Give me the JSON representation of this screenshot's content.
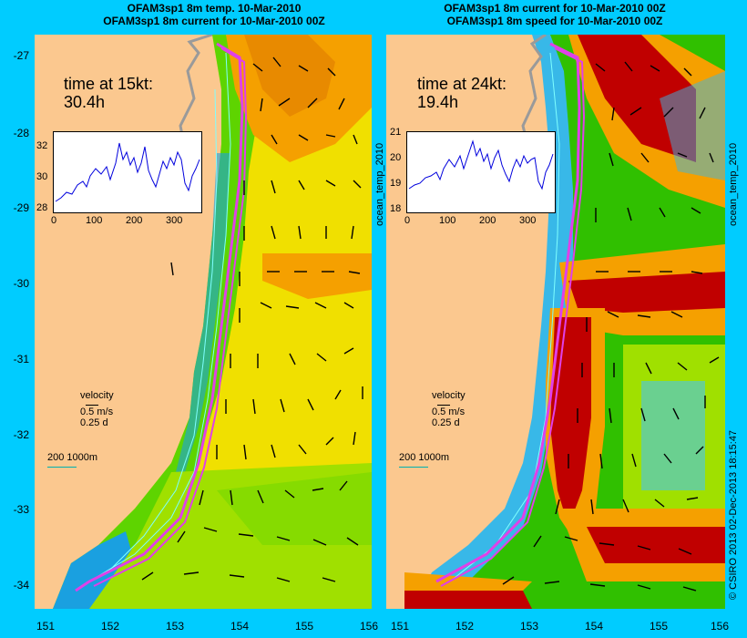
{
  "left_panel": {
    "title_line1": "OFAM3sp1 8m temp. 10-Mar-2010",
    "title_line2": "OFAM3sp1 8m current for 10-Mar-2010 00Z",
    "time_label": "time at 15kt:",
    "time_value": "30.4h",
    "inset_yticks": [
      "32",
      "30",
      "28"
    ],
    "inset_xticks": [
      "0",
      "100",
      "200",
      "300"
    ]
  },
  "right_panel": {
    "title_line1": "OFAM3sp1 8m current for 10-Mar-2010 00Z",
    "title_line2": "OFAM3sp1 8m speed for 10-Mar-2010 00Z",
    "time_label": "time at 24kt:",
    "time_value": "19.4h",
    "inset_yticks": [
      "21",
      "20",
      "19",
      "18"
    ],
    "inset_xticks": [
      "0",
      "100",
      "200",
      "300"
    ]
  },
  "velocity_legend": {
    "line1": "velocity",
    "line2": "0.5 m/s",
    "line3": "0.25 d"
  },
  "depth_legend": "200  1000m",
  "side_label": "ocean_temp_2010",
  "credit": "© CSIRO 2013   02-Dec-2013 18:15:47",
  "lat_labels": [
    "-27",
    "-28",
    "-29",
    "-30",
    "-31",
    "-32",
    "-33",
    "-34"
  ],
  "lon_labels": [
    "151",
    "152",
    "153",
    "154",
    "155",
    "156"
  ],
  "colors": {
    "background": "#00ccff",
    "land": "#fbc88f",
    "track": "#e040e8",
    "isobath": "#7fffff"
  }
}
